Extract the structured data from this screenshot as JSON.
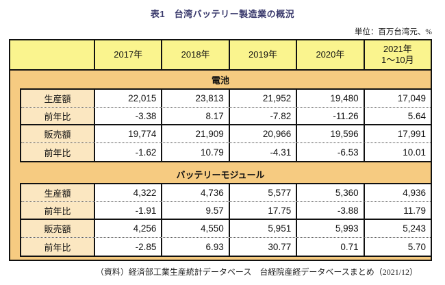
{
  "title": "表1　台湾バッテリー製造業の概況",
  "unit_note": "単位：百万台湾元、%",
  "source_note": "（資料）経済部工業生産統計データベース　台経院産経データベースまとめ（2021/12）",
  "colors": {
    "header_bg": "#FAF48E",
    "section_band_bg": "#F6CB81",
    "row_label_bg": "#FBE7C1",
    "border": "#111111",
    "title_text": "#38386B"
  },
  "table": {
    "columns": [
      {
        "label": "2017年",
        "sublabel": ""
      },
      {
        "label": "2018年",
        "sublabel": ""
      },
      {
        "label": "2019年",
        "sublabel": ""
      },
      {
        "label": "2020年",
        "sublabel": ""
      },
      {
        "label": "2021年",
        "sublabel": "1～10月"
      }
    ],
    "sections": [
      {
        "name": "電池",
        "rows": [
          {
            "label": "生産額",
            "values": [
              "22,015",
              "23,813",
              "21,952",
              "19,480",
              "17,049"
            ]
          },
          {
            "label": "前年比",
            "values": [
              "-3.38",
              "8.17",
              "-7.82",
              "-11.26",
              "5.64"
            ]
          },
          {
            "label": "販売額",
            "values": [
              "19,774",
              "21,909",
              "20,966",
              "19,596",
              "17,991"
            ]
          },
          {
            "label": "前年比",
            "values": [
              "-1.62",
              "10.79",
              "-4.31",
              "-6.53",
              "10.01"
            ]
          }
        ]
      },
      {
        "name": "バッテリーモジュール",
        "rows": [
          {
            "label": "生産額",
            "values": [
              "4,322",
              "4,736",
              "5,577",
              "5,360",
              "4,936"
            ]
          },
          {
            "label": "前年比",
            "values": [
              "-1.91",
              "9.57",
              "17.75",
              "-3.88",
              "11.79"
            ]
          },
          {
            "label": "販売額",
            "values": [
              "4,256",
              "4,550",
              "5,951",
              "5,993",
              "5,243"
            ]
          },
          {
            "label": "前年比",
            "values": [
              "-2.85",
              "6.93",
              "30.77",
              "0.71",
              "5.70"
            ]
          }
        ]
      }
    ]
  }
}
